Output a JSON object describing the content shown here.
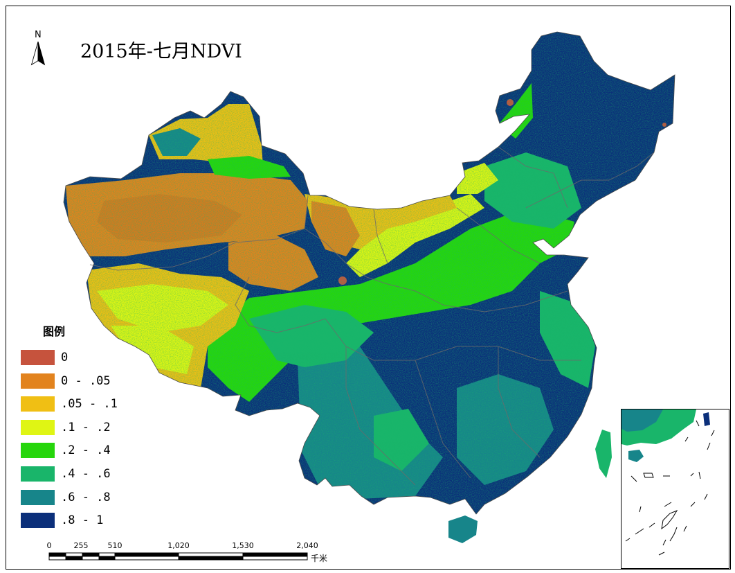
{
  "map": {
    "title": "2015年-七月NDVI",
    "north_label": "N",
    "legend": {
      "title": "图例",
      "items": [
        {
          "label": "0",
          "color": "#c6533d"
        },
        {
          "label": "0 - .05",
          "color": "#e2831e"
        },
        {
          "label": ".05 - .1",
          "color": "#f0bf14"
        },
        {
          "label": ".1 - .2",
          "color": "#dff514"
        },
        {
          "label": ".2 - .4",
          "color": "#26d60c"
        },
        {
          "label": ".4 - .6",
          "color": "#19b56a"
        },
        {
          "label": ".6 - .8",
          "color": "#17858a"
        },
        {
          "label": ".8 - 1",
          "color": "#0b2f7a"
        }
      ]
    },
    "scale_bar": {
      "ticks": [
        "0",
        "255",
        "510",
        "1,020",
        "1,530",
        "2,040"
      ],
      "unit": "千米"
    }
  }
}
